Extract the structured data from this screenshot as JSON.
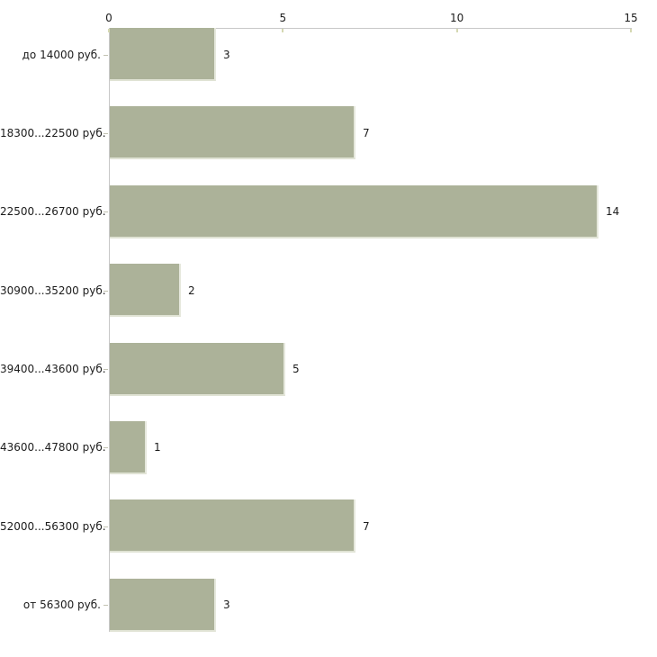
{
  "chart_data": {
    "type": "bar",
    "orientation": "horizontal",
    "title": "",
    "xlabel": "",
    "ylabel": "",
    "categories": [
      "до 14000 руб.",
      "18300...22500 руб.",
      "22500...26700 руб.",
      "30900...35200 руб.",
      "39400...43600 руб.",
      "43600...47800 руб.",
      "52000...56300 руб.",
      "от 56300 руб."
    ],
    "values": [
      3,
      7,
      14,
      2,
      5,
      1,
      7,
      3
    ],
    "value_labels": [
      "3",
      "7",
      "14",
      "2",
      "5",
      "1",
      "7",
      "3"
    ],
    "x_ticks": [
      0,
      5,
      10,
      15
    ],
    "xlim": [
      0,
      15
    ],
    "grid": false,
    "legend": "none",
    "axis_position": "top",
    "colors": {
      "bar_fill": "#acb299",
      "bar_edge_light": "#e6e8dd",
      "axis_line": "#c8c8c8",
      "x_tick_mark": "#d5d8b2",
      "y_tick_mark": "#c2c2b2",
      "text": "#1c1c1c",
      "background": "#ffffff"
    }
  }
}
